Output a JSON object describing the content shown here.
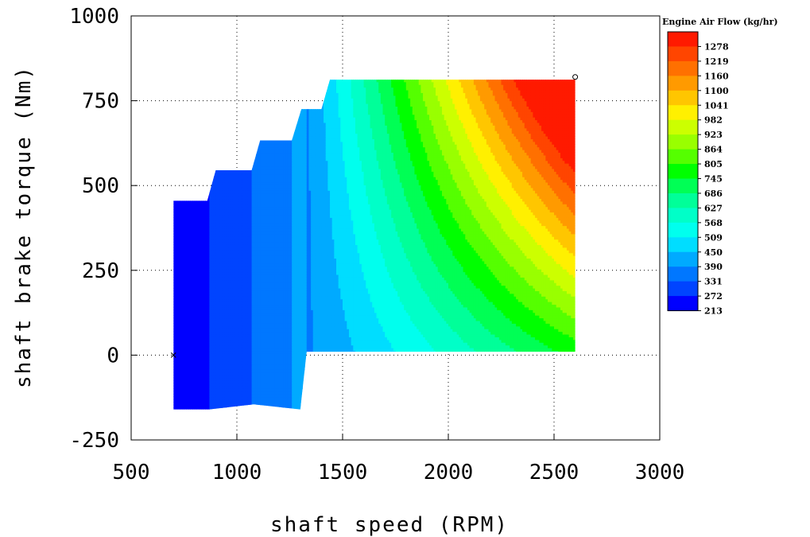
{
  "chart_data": {
    "type": "heatmap",
    "subtype": "filled-contour",
    "xlabel": "shaft speed (RPM)",
    "ylabel": "shaft brake torque (Nm)",
    "xlim": [
      500,
      3000
    ],
    "ylim": [
      -250,
      1000
    ],
    "x_ticks": [
      "500",
      "1000",
      "1500",
      "2000",
      "2500",
      "3000"
    ],
    "y_ticks": [
      "-250",
      "0",
      "250",
      "500",
      "750",
      "1000"
    ],
    "x_tick_values": [
      500,
      1000,
      1500,
      2000,
      2500,
      3000
    ],
    "y_tick_values": [
      -250,
      0,
      250,
      500,
      750,
      1000
    ],
    "grid": true,
    "colorbar": {
      "title": "Engine Air Flow (kg/hr)",
      "placement": "right",
      "levels": [
        "1278",
        "1219",
        "1160",
        "1100",
        "1041",
        "982",
        "923",
        "864",
        "805",
        "745",
        "686",
        "627",
        "568",
        "509",
        "450",
        "390",
        "331",
        "272",
        "213"
      ],
      "level_values": [
        1278,
        1219,
        1160,
        1100,
        1041,
        982,
        923,
        864,
        805,
        745,
        686,
        627,
        568,
        509,
        450,
        390,
        331,
        272,
        213
      ],
      "colors": [
        "#ff1a00",
        "#ff4500",
        "#ff7000",
        "#ff9a00",
        "#ffc600",
        "#fff000",
        "#ccff00",
        "#99ff00",
        "#55ff00",
        "#00ff00",
        "#00ff55",
        "#00ff99",
        "#00ffc8",
        "#00ffee",
        "#00ddff",
        "#00aaff",
        "#0077ff",
        "#0044ff",
        "#0000ff"
      ]
    },
    "envelope": {
      "upper": [
        [
          700,
          455
        ],
        [
          860,
          455
        ],
        [
          900,
          545
        ],
        [
          1070,
          545
        ],
        [
          1110,
          633
        ],
        [
          1260,
          633
        ],
        [
          1305,
          725
        ],
        [
          1400,
          725
        ],
        [
          1440,
          812
        ],
        [
          2600,
          812
        ]
      ],
      "lower": [
        [
          700,
          -160
        ],
        [
          870,
          -160
        ],
        [
          1080,
          -145
        ],
        [
          1300,
          -160
        ],
        [
          1330,
          10
        ],
        [
          2600,
          10
        ]
      ],
      "segments": [
        {
          "x": [
            700,
            870
          ],
          "airflow_range": [
            213,
            272
          ]
        },
        {
          "x": [
            870,
            1070
          ],
          "airflow_range": [
            272,
            331
          ]
        },
        {
          "x": [
            1070,
            1260
          ],
          "airflow_range": [
            331,
            390
          ]
        },
        {
          "x": [
            1260,
            1400
          ],
          "airflow_range": [
            390,
            509
          ]
        },
        {
          "x": [
            1400,
            2600
          ],
          "airflow_range": [
            450,
            1278
          ]
        }
      ]
    },
    "markers": [
      {
        "symbol": "x",
        "x": 700,
        "y": 0
      },
      {
        "symbol": "o",
        "x": 2600,
        "y": 820
      }
    ]
  }
}
